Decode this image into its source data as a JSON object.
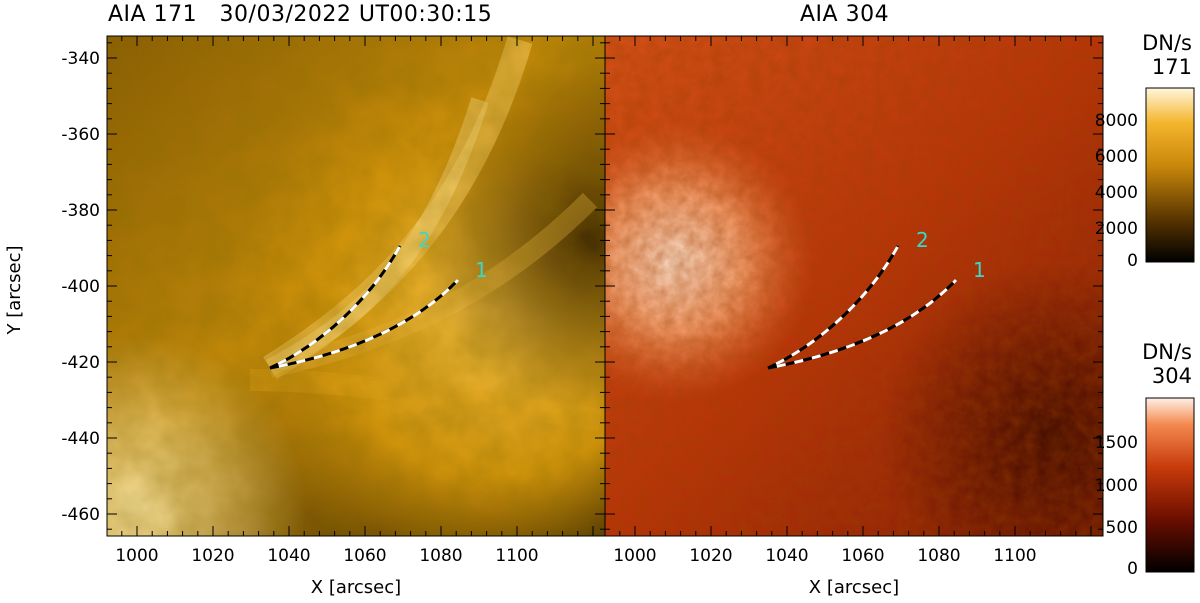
{
  "panels": [
    {
      "id": "aia171",
      "title": "AIA 171   30/03/2022 UT00:30:15",
      "loop_labels": [
        "2",
        "1"
      ]
    },
    {
      "id": "aia304",
      "title": "AIA 304",
      "loop_labels": [
        "2",
        "1"
      ]
    }
  ],
  "axes": {
    "xlabel": "X [arcsec]",
    "ylabel": "Y [arcsec]",
    "x_ticks": [
      "1000",
      "1020",
      "1040",
      "1060",
      "1080",
      "1100"
    ],
    "y_ticks": [
      "-340",
      "-360",
      "-380",
      "-400",
      "-420",
      "-440",
      "-460"
    ]
  },
  "colorbars": [
    {
      "title_line1": "DN/s",
      "title_line2": "171",
      "ticks": [
        "8000",
        "6000",
        "4000",
        "2000",
        "0"
      ]
    },
    {
      "title_line1": "DN/s",
      "title_line2": "304",
      "ticks": [
        "1500",
        "1000",
        "500",
        "0"
      ]
    }
  ],
  "colors": {
    "label_color": "#3ed6c6",
    "aia171_mid": "#d79a10",
    "aia304_mid": "#c43a0c"
  }
}
